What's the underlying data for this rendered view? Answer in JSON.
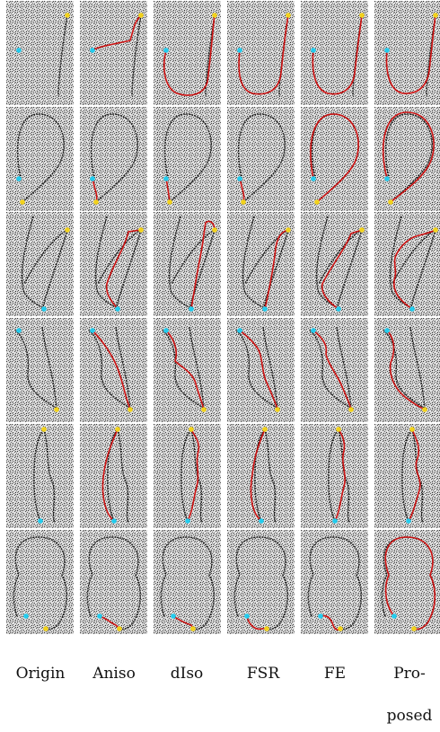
{
  "columns": [
    "Origin",
    "Aniso",
    "dIso",
    "FSR",
    "FE",
    "Pro-",
    "posed"
  ],
  "colors": {
    "curve": "#1a1a1a",
    "path": "#cc1111",
    "start_marker": "#22ccee",
    "end_marker": "#f2d21b",
    "noise_light": "#e6e6e6",
    "noise_dark": "#5a5a5a"
  },
  "panel_grid": {
    "rows": 6,
    "cols": 6
  }
}
